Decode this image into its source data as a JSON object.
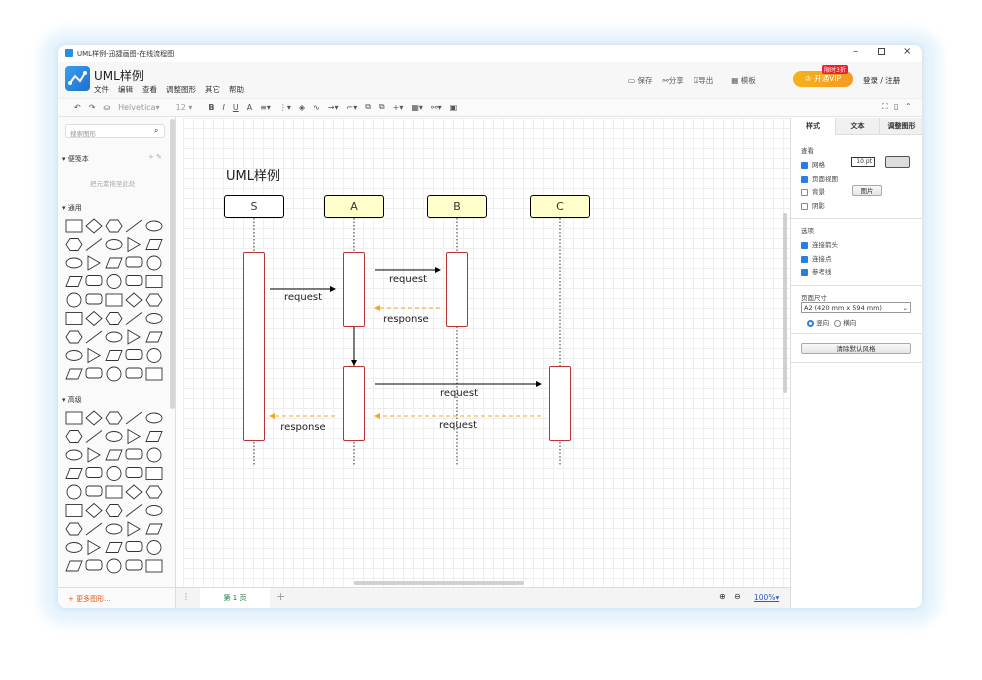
{
  "window": {
    "title": "UML样例-迅捷画图-在线流程图",
    "controls": [
      "minimize",
      "maximize",
      "close"
    ]
  },
  "header": {
    "doc_title": "UML样例",
    "menu": [
      "文件",
      "编辑",
      "查看",
      "调整图形",
      "其它",
      "帮助"
    ],
    "actions": [
      {
        "label": "保存",
        "icon": "save-icon"
      },
      {
        "label": "分享",
        "icon": "share-icon"
      },
      {
        "label": "导出",
        "icon": "export-icon"
      },
      {
        "label": "模板",
        "icon": "template-icon"
      }
    ],
    "vip_label": "开通VIP",
    "vip_badge": "限时3折",
    "login": "登录 / 注册",
    "accent": "#f5a623"
  },
  "toolbar": {
    "font": "Helvetica",
    "size": "12"
  },
  "sidebar": {
    "search_placeholder": "搜索图形",
    "notes_title": "便笺本",
    "notes_hint": "把元素拖至此处",
    "general_title": "通用",
    "advanced_title": "高级",
    "more_shapes": "更多图形..."
  },
  "diagram": {
    "title": "UML样例",
    "participants": [
      "S",
      "A",
      "B",
      "C"
    ],
    "messages": [
      "request",
      "request",
      "response",
      "request",
      "request",
      "response"
    ],
    "colors": {
      "participant_fill": "#ffffcc",
      "activation_border": "#b33333",
      "return_arrow": "#f5a623"
    }
  },
  "right_panel": {
    "tabs": [
      "样式",
      "文本",
      "调整图形"
    ],
    "view_title": "查看",
    "grid": {
      "label": "网格",
      "checked": true,
      "size": "10 pt"
    },
    "page_view": {
      "label": "页面视图",
      "checked": true
    },
    "background": {
      "label": "背景",
      "checked": false,
      "button": "图片"
    },
    "shadow": {
      "label": "阴影",
      "checked": false
    },
    "options_title": "选项",
    "options": [
      {
        "label": "连接箭头",
        "checked": true
      },
      {
        "label": "连接点",
        "checked": true
      },
      {
        "label": "参考线",
        "checked": true
      }
    ],
    "page_size_title": "页面尺寸",
    "page_size": "A2 (420 mm x 594 mm)",
    "orientation": {
      "portrait": "竖向",
      "landscape": "横向",
      "selected": "portrait"
    },
    "reset_button": "清除默认风格"
  },
  "bottom": {
    "page_tab": "第 1 页",
    "zoom": "100%"
  }
}
